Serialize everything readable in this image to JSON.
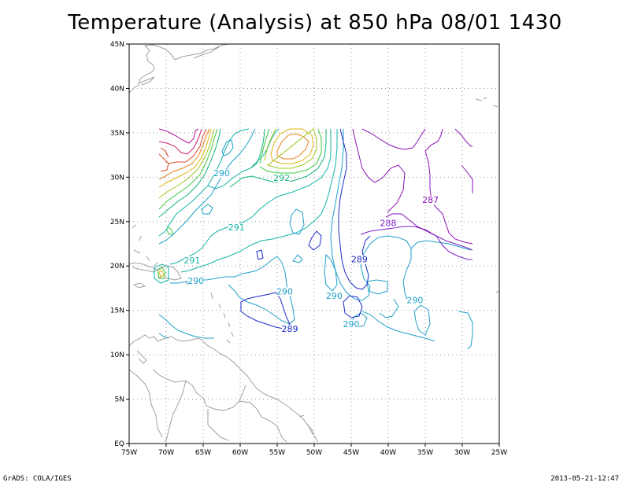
{
  "title": "Temperature (Analysis) at 850 hPa 08/01 1430",
  "footer_left": "GrADS: COLA/IGES",
  "footer_right": "2013-05-21-12:47",
  "map": {
    "lon_range": [
      -75,
      -25
    ],
    "lat_range": [
      0,
      45
    ],
    "lon_ticks": [
      {
        "lon": -75,
        "label": "75W"
      },
      {
        "lon": -70,
        "label": "70W"
      },
      {
        "lon": -65,
        "label": "65W"
      },
      {
        "lon": -60,
        "label": "60W"
      },
      {
        "lon": -55,
        "label": "55W"
      },
      {
        "lon": -50,
        "label": "50W"
      },
      {
        "lon": -45,
        "label": "45W"
      },
      {
        "lon": -40,
        "label": "40W"
      },
      {
        "lon": -35,
        "label": "35W"
      },
      {
        "lon": -30,
        "label": "30W"
      },
      {
        "lon": -25,
        "label": "25W"
      }
    ],
    "lat_ticks": [
      {
        "lat": 0,
        "label": "EQ"
      },
      {
        "lat": 5,
        "label": "5N"
      },
      {
        "lat": 10,
        "label": "10N"
      },
      {
        "lat": 15,
        "label": "15N"
      },
      {
        "lat": 20,
        "label": "20N"
      },
      {
        "lat": 25,
        "label": "25N"
      },
      {
        "lat": 30,
        "label": "30N"
      },
      {
        "lat": 35,
        "label": "35N"
      },
      {
        "lat": 40,
        "label": "40N"
      },
      {
        "lat": 45,
        "label": "45N"
      }
    ],
    "grid": true,
    "colors": {
      "coast": "#a0a0a0",
      "grid": "#9a9a9a",
      "c287": "#8c10b4",
      "c288": "#7a20c8",
      "c289": "#1b2cc8",
      "c290": "#1ea0c8",
      "c291": "#14b4a8",
      "c292": "#10b478",
      "c293": "#3cc83c",
      "c294": "#a0c81e",
      "c295": "#dcb414",
      "c296": "#e6821e",
      "c297": "#dc4628",
      "c298": "#c81e6e",
      "c299": "#b414a0"
    },
    "contour_labels": [
      {
        "text": "290",
        "lon": -62.5,
        "lat": 30.1,
        "color": "c290"
      },
      {
        "text": "292",
        "lon": -54.4,
        "lat": 29.6,
        "color": "c292"
      },
      {
        "text": "291",
        "lon": -60.5,
        "lat": 24.0,
        "color": "c291"
      },
      {
        "text": "291",
        "lon": -66.5,
        "lat": 20.3,
        "color": "c291"
      },
      {
        "text": "290",
        "lon": -66.0,
        "lat": 18.0,
        "color": "c290"
      },
      {
        "text": "290",
        "lon": -54.0,
        "lat": 16.8,
        "color": "c290"
      },
      {
        "text": "289",
        "lon": -53.3,
        "lat": 12.6,
        "color": "c289"
      },
      {
        "text": "289",
        "lon": -43.9,
        "lat": 20.4,
        "color": "c289"
      },
      {
        "text": "290",
        "lon": -47.3,
        "lat": 16.3,
        "color": "c290"
      },
      {
        "text": "290",
        "lon": -45.0,
        "lat": 13.1,
        "color": "c290"
      },
      {
        "text": "290",
        "lon": -36.4,
        "lat": 15.8,
        "color": "c290"
      },
      {
        "text": "288",
        "lon": -40.0,
        "lat": 24.5,
        "color": "c288"
      },
      {
        "text": "287",
        "lon": -34.3,
        "lat": 27.1,
        "color": "c287"
      }
    ]
  }
}
